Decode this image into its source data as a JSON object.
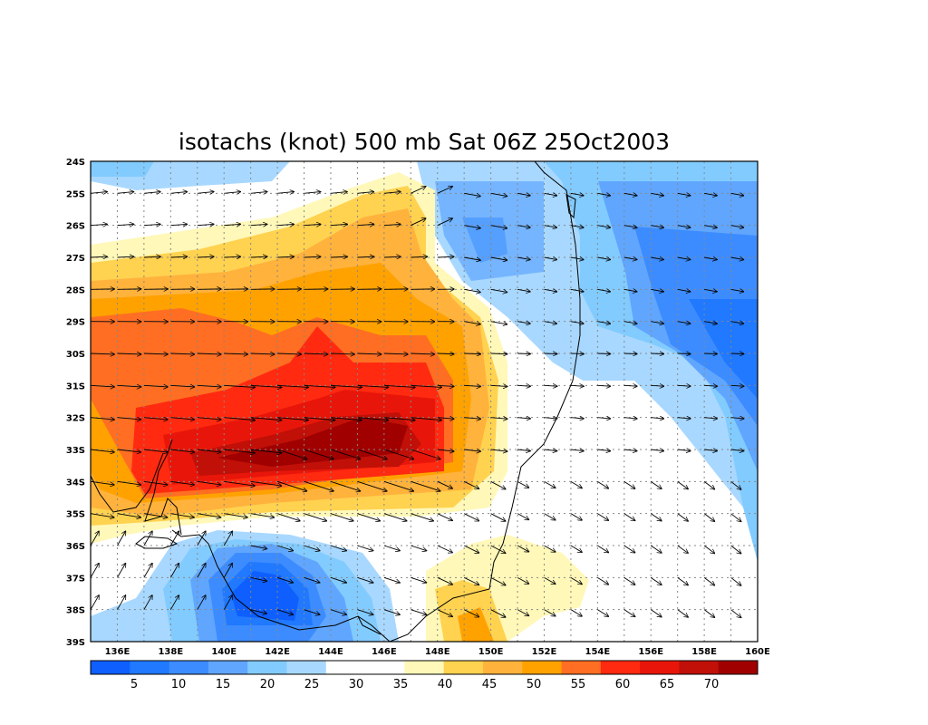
{
  "title": "isotachs (knot) 500 mb Sat 06Z 25Oct2003",
  "lat_labels": [
    "24S",
    "25S",
    "26S",
    "27S",
    "28S",
    "29S",
    "30S",
    "31S",
    "32S",
    "33S",
    "34S",
    "35S",
    "36S",
    "37S",
    "38S",
    "39S"
  ],
  "lon_labels": [
    "136E",
    "138E",
    "140E",
    "142E",
    "144E",
    "146E",
    "148E",
    "150E",
    "152E",
    "154E",
    "156E",
    "158E",
    "160E"
  ],
  "colorbar": {
    "colors": [
      "#0f5fff",
      "#2079ff",
      "#3d8cff",
      "#60a6ff",
      "#82cbff",
      "#a8d8ff",
      "#ffffff",
      "#ffffff",
      "#fff8b8",
      "#ffd250",
      "#ffb23c",
      "#ffa200",
      "#ff6e22",
      "#ff2a10",
      "#e8160a",
      "#c01008",
      "#a00000"
    ],
    "labels": [
      "5",
      "10",
      "15",
      "20",
      "25",
      "30",
      "35",
      "40",
      "45",
      "50",
      "55",
      "60",
      "65",
      "70"
    ]
  },
  "chart_data": {
    "type": "heatmap",
    "title": "isotachs (knot) 500 mb Sat 06Z 25Oct2003",
    "units": "knot",
    "level": "500 mb",
    "x_range": [
      "135E",
      "160E"
    ],
    "y_range": [
      "24S",
      "39S"
    ],
    "contour_levels": [
      5,
      10,
      15,
      20,
      25,
      30,
      35,
      40,
      45,
      50,
      55,
      60,
      65,
      70
    ],
    "max_region": {
      "approx_lon": "143E-146E",
      "approx_lat": "32S-34S",
      "value": ">70"
    },
    "min_regions": [
      {
        "approx_lon": "141E-143E",
        "approx_lat": "37S-38S",
        "value": "<5"
      },
      {
        "approx_lon": "158E-159E",
        "approx_lat": "29S-31S",
        "value": "10-15"
      }
    ]
  }
}
